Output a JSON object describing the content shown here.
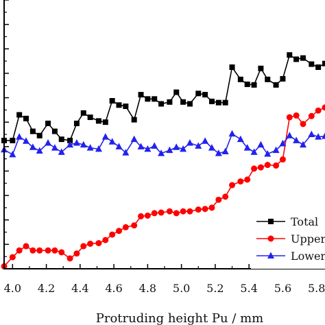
{
  "chart_data": {
    "type": "line",
    "xlabel": "Protruding height Pu / mm",
    "ylabel": "",
    "xlim": [
      3.95,
      5.85
    ],
    "ylim": [
      0,
      440
    ],
    "x_ticks": [
      "4.0",
      "4.2",
      "4.4",
      "4.6",
      "4.8",
      "5.0",
      "5.2",
      "5.4",
      "5.6",
      "5.8"
    ],
    "grid": false,
    "legend_position": "bottom-right",
    "series": [
      {
        "name": "Total",
        "color": "#000000",
        "marker": "square",
        "x": [
          3.95,
          4.0,
          4.04,
          4.08,
          4.12,
          4.16,
          4.21,
          4.25,
          4.29,
          4.34,
          4.38,
          4.42,
          4.46,
          4.51,
          4.55,
          4.59,
          4.63,
          4.67,
          4.72,
          4.76,
          4.8,
          4.84,
          4.88,
          4.93,
          4.97,
          5.01,
          5.05,
          5.1,
          5.14,
          5.18,
          5.22,
          5.26,
          5.3,
          5.35,
          5.39,
          5.43,
          5.47,
          5.51,
          5.56,
          5.6,
          5.64,
          5.68,
          5.72,
          5.77,
          5.81,
          5.85
        ],
        "y": [
          210,
          210,
          252,
          246,
          225,
          218,
          238,
          225,
          212,
          210,
          238,
          255,
          248,
          242,
          240,
          275,
          268,
          266,
          244,
          285,
          278,
          278,
          270,
          273,
          289,
          273,
          270,
          287,
          285,
          274,
          272,
          272,
          330,
          310,
          302,
          301,
          328,
          310,
          301,
          311,
          350,
          343,
          345,
          335,
          330,
          336
        ]
      },
      {
        "name": "Upper",
        "color": "#ff0000",
        "marker": "circle",
        "x": [
          3.95,
          4.0,
          4.04,
          4.08,
          4.12,
          4.16,
          4.21,
          4.25,
          4.29,
          4.34,
          4.38,
          4.42,
          4.46,
          4.51,
          4.55,
          4.59,
          4.63,
          4.67,
          4.72,
          4.76,
          4.8,
          4.84,
          4.88,
          4.93,
          4.97,
          5.01,
          5.05,
          5.1,
          5.14,
          5.18,
          5.22,
          5.26,
          5.3,
          5.35,
          5.39,
          5.43,
          5.47,
          5.51,
          5.56,
          5.6,
          5.64,
          5.68,
          5.72,
          5.77,
          5.81,
          5.85
        ],
        "y": [
          4,
          19,
          30,
          37,
          30,
          30,
          30,
          30,
          27,
          17,
          25,
          37,
          41,
          42,
          47,
          56,
          62,
          68,
          71,
          86,
          87,
          91,
          92,
          94,
          91,
          94,
          94,
          97,
          98,
          100,
          113,
          118,
          137,
          143,
          146,
          164,
          166,
          170,
          169,
          179,
          248,
          251,
          237,
          250,
          259,
          264
        ]
      },
      {
        "name": "Lower",
        "color": "#2222ee",
        "marker": "triangle",
        "x": [
          3.95,
          4.0,
          4.04,
          4.08,
          4.12,
          4.16,
          4.21,
          4.25,
          4.29,
          4.34,
          4.38,
          4.42,
          4.46,
          4.51,
          4.55,
          4.59,
          4.63,
          4.67,
          4.72,
          4.76,
          4.8,
          4.84,
          4.88,
          4.93,
          4.97,
          5.01,
          5.05,
          5.1,
          5.14,
          5.18,
          5.22,
          5.26,
          5.3,
          5.35,
          5.39,
          5.43,
          5.47,
          5.51,
          5.56,
          5.6,
          5.64,
          5.68,
          5.72,
          5.77,
          5.81,
          5.85
        ],
        "y": [
          195,
          187,
          216,
          209,
          199,
          193,
          206,
          198,
          191,
          203,
          206,
          203,
          198,
          196,
          216,
          208,
          200,
          190,
          212,
          200,
          196,
          201,
          189,
          194,
          199,
          196,
          206,
          201,
          209,
          198,
          189,
          192,
          221,
          212,
          198,
          191,
          203,
          188,
          194,
          205,
          218,
          210,
          203,
          220,
          216,
          217
        ]
      }
    ]
  }
}
